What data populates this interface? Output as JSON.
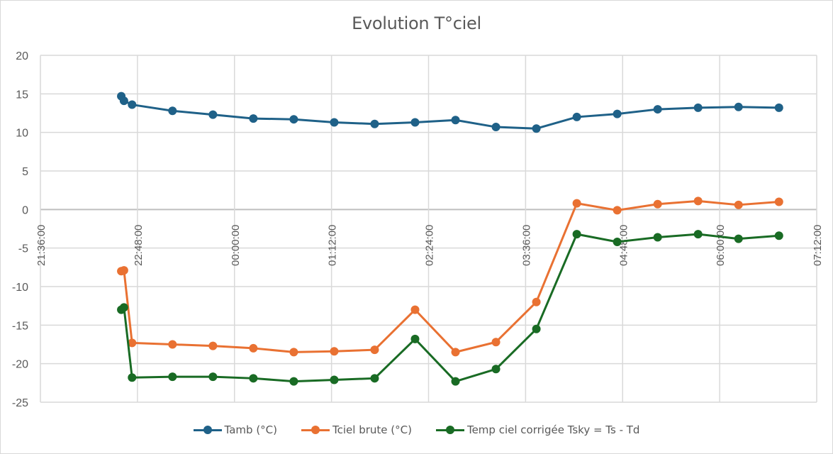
{
  "chart_data": {
    "type": "line",
    "title": "Evolution T°ciel",
    "xlabel": "",
    "ylabel": "",
    "ylim": [
      -25,
      20
    ],
    "yticks": [
      "20",
      "15",
      "10",
      "5",
      "0",
      "-5",
      "-10",
      "-15",
      "-20",
      "-25"
    ],
    "ytick_values": [
      20,
      15,
      10,
      5,
      0,
      -5,
      -10,
      -15,
      -20,
      -25
    ],
    "xlim_minutes": [
      0,
      576
    ],
    "xticks": [
      "21:36:00",
      "22:48:00",
      "00:00:00",
      "01:12:00",
      "02:24:00",
      "03:36:00",
      "04:48:00",
      "06:00:00",
      "07:12:00"
    ],
    "xtick_minutes": [
      0,
      72,
      144,
      216,
      288,
      360,
      432,
      504,
      576
    ],
    "grid": true,
    "legend_position": "bottom",
    "x_minutes": [
      60,
      62,
      68,
      98,
      128,
      158,
      188,
      218,
      248,
      278,
      308,
      338,
      368,
      398,
      428,
      458,
      488,
      518,
      548
    ],
    "series": [
      {
        "name": "Tamb (°C)",
        "color": "#1f6188",
        "values": [
          14.7,
          14.1,
          13.6,
          12.8,
          12.3,
          11.8,
          11.7,
          11.3,
          11.1,
          11.3,
          11.6,
          10.7,
          10.5,
          12.0,
          12.4,
          13.0,
          13.2,
          13.3,
          13.2
        ]
      },
      {
        "name": "Tciel brute (°C)",
        "color": "#e97132",
        "values": [
          -8.0,
          -7.9,
          -17.3,
          -17.5,
          -17.7,
          -18.0,
          -18.5,
          -18.4,
          -18.2,
          -13.0,
          -18.5,
          -17.2,
          -12.0,
          0.8,
          -0.1,
          0.7,
          1.1,
          0.6,
          1.0
        ]
      },
      {
        "name": "Temp ciel corrigée Tsky = Ts - Td",
        "color": "#196b24",
        "values": [
          -13.0,
          -12.7,
          -21.8,
          -21.7,
          -21.7,
          -21.9,
          -22.3,
          -22.1,
          -21.9,
          -16.8,
          -22.3,
          -20.7,
          -15.5,
          -3.2,
          -4.2,
          -3.6,
          -3.2,
          -3.8,
          -3.4
        ]
      }
    ]
  }
}
